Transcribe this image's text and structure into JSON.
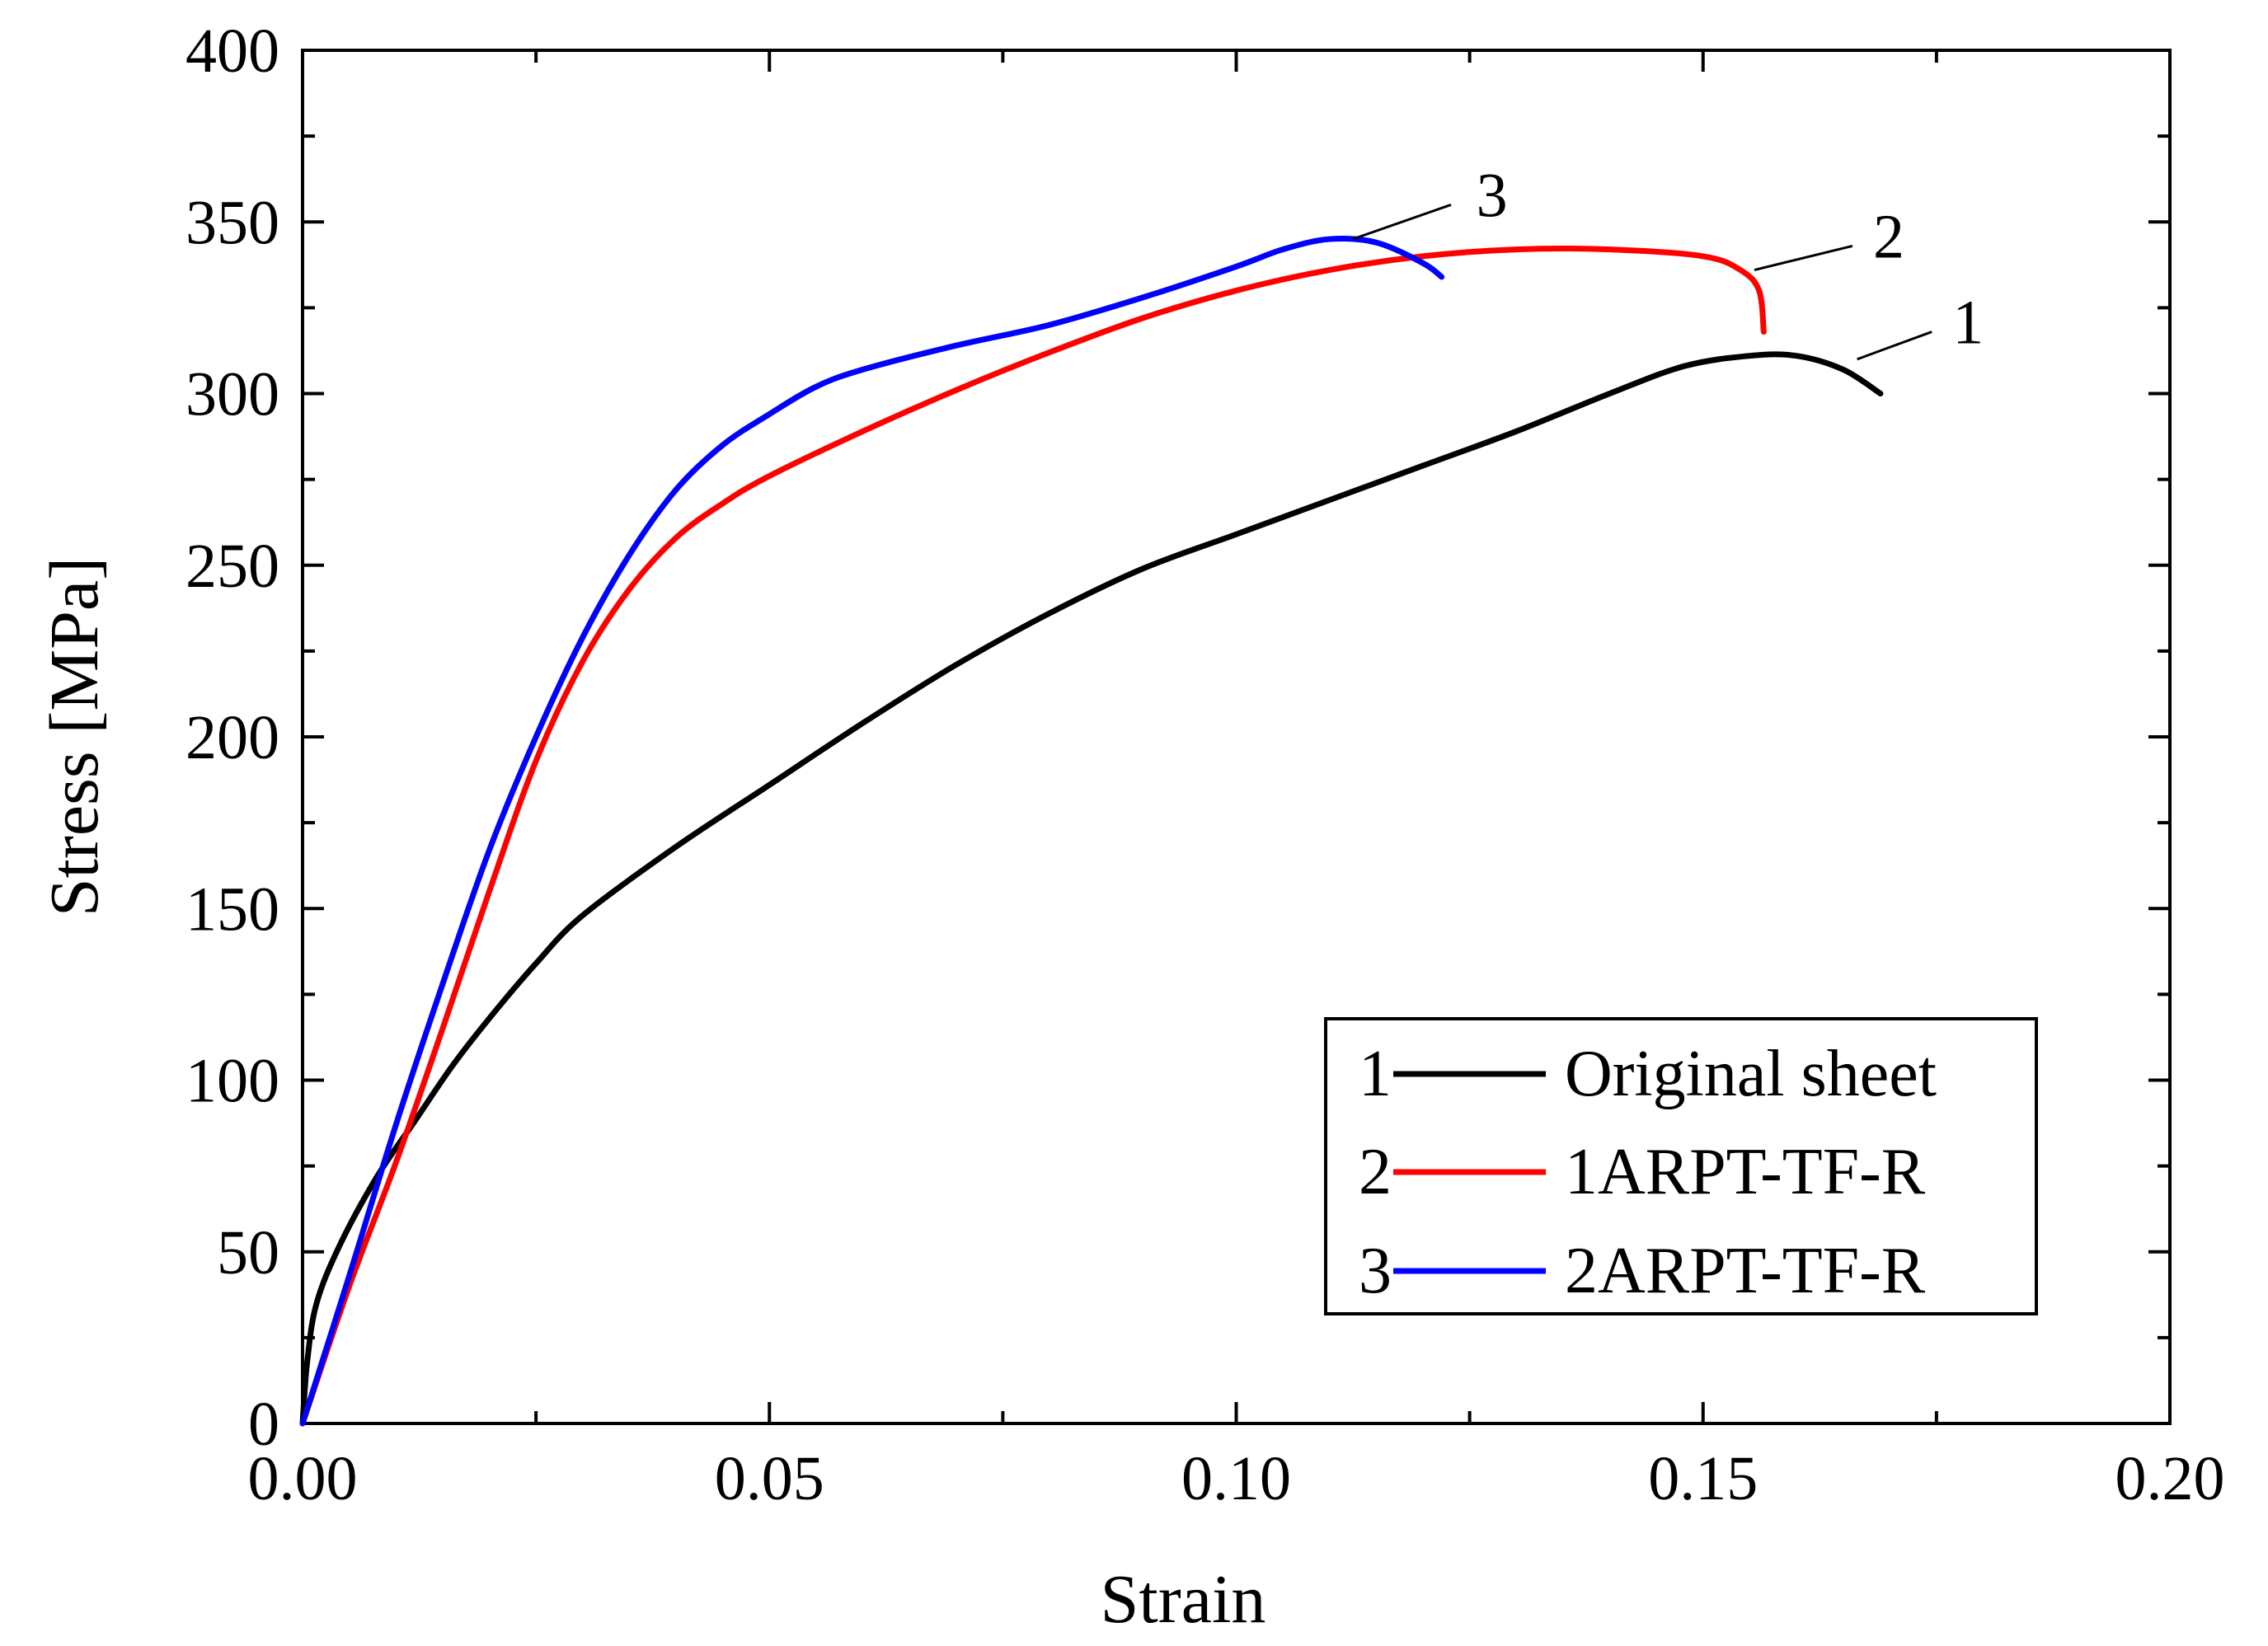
{
  "chart_data": {
    "type": "line",
    "title": "",
    "xlabel": "Strain",
    "ylabel": "Stress [MPa]",
    "xlim": [
      0,
      0.2
    ],
    "ylim": [
      0,
      400
    ],
    "xticks": [
      "0.00",
      "0.05",
      "0.10",
      "0.15",
      "0.20"
    ],
    "xtick_values": [
      0,
      0.05,
      0.1,
      0.15,
      0.2
    ],
    "yticks": [
      "0",
      "50",
      "100",
      "150",
      "200",
      "250",
      "300",
      "350",
      "400"
    ],
    "ytick_values": [
      0,
      50,
      100,
      150,
      200,
      250,
      300,
      350,
      400
    ],
    "grid": false,
    "legend_position": "bottom-right",
    "series": [
      {
        "id": "1",
        "name": "Original sheet",
        "color": "#000000",
        "points": [
          [
            0,
            0
          ],
          [
            0.0005,
            18
          ],
          [
            0.0015,
            35
          ],
          [
            0.004,
            52
          ],
          [
            0.008,
            72
          ],
          [
            0.012,
            88
          ],
          [
            0.016,
            104
          ],
          [
            0.02,
            118
          ],
          [
            0.025,
            134
          ],
          [
            0.03,
            148
          ],
          [
            0.04,
            168
          ],
          [
            0.05,
            186
          ],
          [
            0.06,
            204
          ],
          [
            0.07,
            221
          ],
          [
            0.08,
            236
          ],
          [
            0.09,
            249
          ],
          [
            0.1,
            259
          ],
          [
            0.11,
            269
          ],
          [
            0.12,
            279
          ],
          [
            0.13,
            289
          ],
          [
            0.14,
            300
          ],
          [
            0.148,
            308
          ],
          [
            0.155,
            311
          ],
          [
            0.16,
            311
          ],
          [
            0.165,
            307
          ],
          [
            0.169,
            300
          ]
        ]
      },
      {
        "id": "2",
        "name": "1ARPT-TF-R",
        "color": "#ff0000",
        "points": [
          [
            0,
            0
          ],
          [
            0.005,
            40
          ],
          [
            0.01,
            76
          ],
          [
            0.015,
            115
          ],
          [
            0.02,
            155
          ],
          [
            0.025,
            193
          ],
          [
            0.03,
            222
          ],
          [
            0.035,
            243
          ],
          [
            0.04,
            258
          ],
          [
            0.045,
            268
          ],
          [
            0.05,
            276
          ],
          [
            0.06,
            289
          ],
          [
            0.07,
            301
          ],
          [
            0.08,
            312
          ],
          [
            0.09,
            322
          ],
          [
            0.1,
            330
          ],
          [
            0.11,
            336
          ],
          [
            0.12,
            340
          ],
          [
            0.13,
            342
          ],
          [
            0.14,
            342
          ],
          [
            0.15,
            340
          ],
          [
            0.154,
            336
          ],
          [
            0.156,
            330
          ],
          [
            0.1565,
            318
          ]
        ]
      },
      {
        "id": "3",
        "name": "2ARPT-TF-R",
        "color": "#0000ff",
        "points": [
          [
            0,
            0
          ],
          [
            0.005,
            43
          ],
          [
            0.01,
            87
          ],
          [
            0.015,
            128
          ],
          [
            0.02,
            167
          ],
          [
            0.025,
            200
          ],
          [
            0.03,
            229
          ],
          [
            0.035,
            253
          ],
          [
            0.04,
            272
          ],
          [
            0.045,
            285
          ],
          [
            0.05,
            294
          ],
          [
            0.055,
            302
          ],
          [
            0.06,
            307
          ],
          [
            0.07,
            314
          ],
          [
            0.08,
            320
          ],
          [
            0.09,
            328
          ],
          [
            0.1,
            337
          ],
          [
            0.105,
            342
          ],
          [
            0.11,
            345
          ],
          [
            0.115,
            344
          ],
          [
            0.12,
            338
          ],
          [
            0.122,
            334
          ]
        ]
      }
    ],
    "annotations": [
      {
        "text": "1",
        "x": 0.176,
        "y": 317,
        "line_from": [
          0.1665,
          310
        ],
        "line_to": [
          0.1745,
          318
        ]
      },
      {
        "text": "2",
        "x": 0.1675,
        "y": 342,
        "line_from": [
          0.1555,
          336
        ],
        "line_to": [
          0.166,
          343
        ]
      },
      {
        "text": "3",
        "x": 0.125,
        "y": 354,
        "line_from": [
          0.1125,
          345
        ],
        "line_to": [
          0.123,
          355
        ]
      }
    ],
    "legend": [
      {
        "number": "1",
        "label": "Original sheet",
        "color": "#000000"
      },
      {
        "number": "2",
        "label": "1ARPT-TF-R",
        "color": "#ff0000"
      },
      {
        "number": "3",
        "label": "2ARPT-TF-R",
        "color": "#0000ff"
      }
    ]
  }
}
